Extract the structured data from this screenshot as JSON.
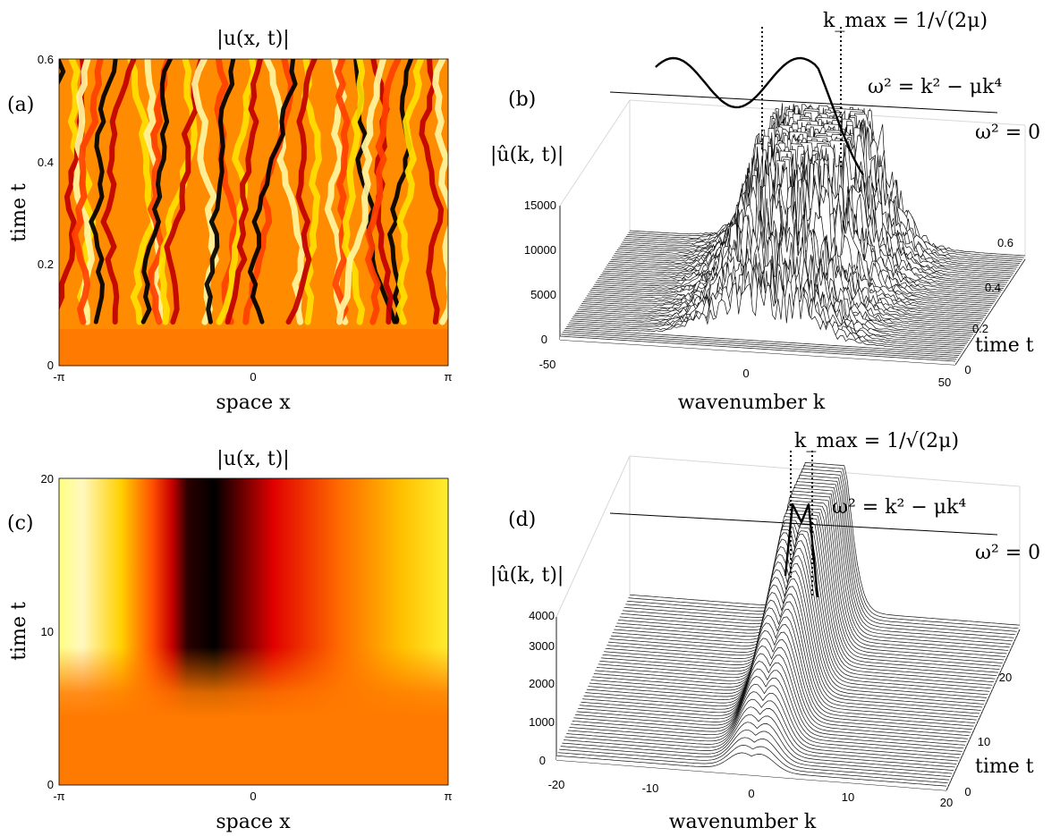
{
  "chart_data": [
    {
      "id": "a",
      "type": "heatmap",
      "panel_label": "(a)",
      "title": "|u(x, t)|",
      "xlabel": "space x",
      "ylabel": "time t",
      "xticks": [
        "-π",
        "0",
        "π"
      ],
      "yticks": [
        "0",
        "0.2",
        "0.4",
        "0.6"
      ],
      "xlim": [
        "-π",
        "π"
      ],
      "ylim": [
        0,
        0.6
      ],
      "colormap": "hot",
      "pattern": "irregular wavy filaments (spatio-temporal chaos), uniform orange below t≈0.05",
      "onset_time": 0.05
    },
    {
      "id": "b",
      "type": "waterfall",
      "panel_label": "(b)",
      "zlabel": "|û(k, t)|",
      "xlabel": "wavenumber k",
      "ylabel": "time t",
      "xlim": [
        -50,
        50
      ],
      "ylim": [
        0,
        0.7
      ],
      "zlim": [
        0,
        15000
      ],
      "xticks": [
        "-50",
        "0",
        "50"
      ],
      "yticks": [
        "0",
        "0.2",
        "0.4",
        "0.6"
      ],
      "zticks": [
        "0",
        "5000",
        "10000",
        "15000"
      ],
      "dispersion_label": "ω² = k² − μk⁴",
      "zero_label": "ω² = 0",
      "kmax_label": "k_max = 1/√(2μ)",
      "kmax": 11.2,
      "peak_amplitude": 15000,
      "band_width": 22
    },
    {
      "id": "c",
      "type": "heatmap",
      "panel_label": "(c)",
      "title": "|u(x, t)|",
      "xlabel": "space x",
      "ylabel": "time t",
      "xticks": [
        "-π",
        "0",
        "π"
      ],
      "yticks": [
        "0",
        "10",
        "20"
      ],
      "xlim": [
        "-π",
        "π"
      ],
      "ylim": [
        0,
        20
      ],
      "colormap": "hot",
      "pattern": "single dark trough near x≈-0.8 forming after t≈6, bright near edges",
      "onset_time": 6
    },
    {
      "id": "d",
      "type": "waterfall",
      "panel_label": "(d)",
      "zlabel": "|û(k, t)|",
      "xlabel": "wavenumber k",
      "ylabel": "time t",
      "xlim": [
        -20,
        20
      ],
      "ylim": [
        0,
        24
      ],
      "zlim": [
        0,
        4000
      ],
      "xticks": [
        "-20",
        "-10",
        "0",
        "10",
        "20"
      ],
      "yticks": [
        "0",
        "10",
        "20"
      ],
      "zticks": [
        "0",
        "1000",
        "2000",
        "3000",
        "4000"
      ],
      "dispersion_label": "ω² = k² − μk⁴",
      "zero_label": "ω² = 0",
      "kmax_label": "k_max = 1/√(2μ)",
      "kmax": 2.2,
      "peak_amplitude": 4000,
      "band_width": 3
    }
  ]
}
